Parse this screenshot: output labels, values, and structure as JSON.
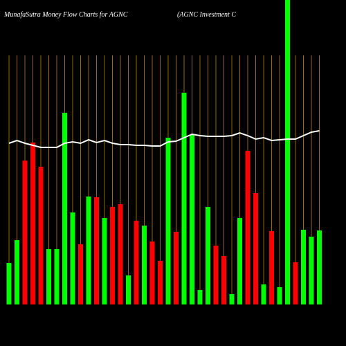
{
  "chart_data": {
    "type": "bar",
    "title": "MunafaSutra  Money Flow  Charts for AGNC",
    "subtitle": "(AGNC Investment C",
    "ylim": [
      0,
      440
    ],
    "values": [
      60,
      93,
      208,
      234,
      199,
      80,
      80,
      277,
      133,
      87,
      156,
      155,
      125,
      141,
      145,
      42,
      121,
      114,
      91,
      63,
      241,
      105,
      306,
      245,
      21,
      141,
      85,
      70,
      15,
      125,
      222,
      161,
      29,
      106,
      25,
      440,
      61,
      108,
      98,
      107
    ],
    "bar_colors": [
      "#00ff00",
      "#00ff00",
      "#ff0000",
      "#ff0000",
      "#ff0000",
      "#00ff00",
      "#00ff00",
      "#00ff00",
      "#00ff00",
      "#ff0000",
      "#00ff00",
      "#ff0000",
      "#00ff00",
      "#ff0000",
      "#ff0000",
      "#00ff00",
      "#ff0000",
      "#00ff00",
      "#ff0000",
      "#ff0000",
      "#00ff00",
      "#ff0000",
      "#00ff00",
      "#00ff00",
      "#00ff00",
      "#00ff00",
      "#ff0000",
      "#ff0000",
      "#00ff00",
      "#00ff00",
      "#ff0000",
      "#ff0000",
      "#00ff00",
      "#ff0000",
      "#00ff00",
      "#00ff00",
      "#ff0000",
      "#00ff00",
      "#00ff00",
      "#00ff00"
    ],
    "line": {
      "color": "#ffffff",
      "values": [
        233,
        237,
        233,
        230,
        227,
        227,
        227,
        233,
        235,
        233,
        238,
        234,
        237,
        233,
        231,
        231,
        230,
        230,
        229,
        229,
        235,
        236,
        241,
        246,
        244,
        243,
        243,
        243,
        244,
        248,
        244,
        239,
        241,
        237,
        238,
        239,
        239,
        244,
        249,
        251
      ]
    },
    "grid_color": "#b8860b"
  }
}
